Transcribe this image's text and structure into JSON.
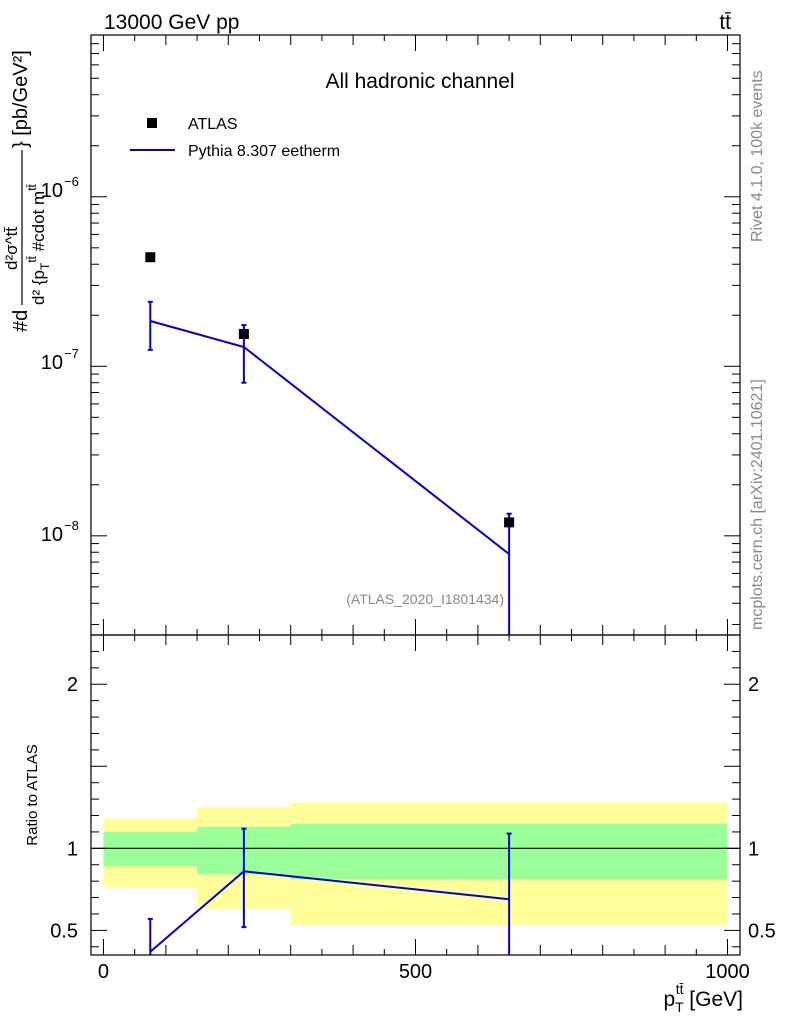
{
  "header": {
    "energy_label": "13000 GeV pp",
    "process_label": "tt̄"
  },
  "side_labels": {
    "rivet": "Rivet 4.1.0,  100k events",
    "source": "mcplots.cern.ch [arXiv:2401.10621]"
  },
  "colors": {
    "data": "#000000",
    "mc": "#0000dd",
    "band_inner": "#99ff99",
    "band_outer": "#ffff99"
  },
  "chart_data": [
    {
      "type": "scatter",
      "panel": "main",
      "title": "All hadronic channel",
      "analysis_label": "(ATLAS_2020_I1801434)",
      "ylabel": "#d d²σ^{tt̄} / d² {p_T^{tt̄} #cdot m^{tt̄}} [pb/GeV²]",
      "ylabel_parts": {
        "prefix": "#d",
        "numerator": "d²σ^tt̄",
        "denominator": "d² {p",
        "denominator_sub": "T",
        "denominator_sup": "tt̄",
        "denominator_rest": " #cdot m",
        "denominator_sup2": "tt̄",
        "unit": "} [pb/GeV²]"
      },
      "yscale": "log",
      "ylim": [
        2.6e-09,
        9e-06
      ],
      "xlim": [
        -20,
        1020
      ],
      "ytick_labels": [
        {
          "value": 1e-06,
          "base": "10",
          "exp": "−6"
        },
        {
          "value": 1e-07,
          "base": "10",
          "exp": "−7"
        },
        {
          "value": 1e-08,
          "base": "10",
          "exp": "−8"
        }
      ],
      "legend": {
        "location": "top-left",
        "entries": [
          {
            "label": "ATLAS",
            "kind": "marker"
          },
          {
            "label": "Pythia 8.307 eetherm",
            "kind": "line"
          }
        ]
      },
      "series": [
        {
          "name": "ATLAS",
          "x": [
            75,
            225,
            650
          ],
          "y": [
            4.4e-07,
            1.55e-07,
            1.2e-08
          ],
          "yerr_low": [
            0,
            0,
            0
          ],
          "yerr_high": [
            0,
            0,
            0
          ]
        },
        {
          "name": "Pythia 8.307 eetherm",
          "x": [
            75,
            225,
            650
          ],
          "y": [
            1.85e-07,
            1.3e-07,
            7.8e-09
          ],
          "yerr_low": [
            1.25e-07,
            8e-08,
            2.5e-09
          ],
          "yerr_high": [
            2.4e-07,
            1.75e-07,
            1.35e-08
          ]
        }
      ]
    },
    {
      "type": "line",
      "panel": "ratio",
      "ylabel": "Ratio to ATLAS",
      "xlabel": "p_T^{tt̄} [GeV]",
      "xlabel_parts": {
        "base": "p",
        "sub": "T",
        "sup": "tt̄",
        "rest": " [GeV]"
      },
      "xlim": [
        -20,
        1020
      ],
      "ylim": [
        0.35,
        2.3
      ],
      "xticks": [
        0,
        500,
        1000
      ],
      "xtick_labels": [
        "0",
        "500",
        "1000"
      ],
      "yticks": [
        0.5,
        1,
        2
      ],
      "ytick_labels": [
        "0.5",
        "1",
        "2"
      ],
      "bands": [
        {
          "xmin": 0,
          "xmax": 150,
          "inner": [
            0.89,
            1.1
          ],
          "outer": [
            0.76,
            1.18
          ]
        },
        {
          "xmin": 150,
          "xmax": 300,
          "inner": [
            0.84,
            1.13
          ],
          "outer": [
            0.63,
            1.25
          ]
        },
        {
          "xmin": 300,
          "xmax": 1000,
          "inner": [
            0.81,
            1.15
          ],
          "outer": [
            0.53,
            1.28
          ]
        }
      ],
      "series": [
        {
          "name": "Pythia 8.307 eetherm",
          "x": [
            75,
            225,
            650
          ],
          "y": [
            0.37,
            0.86,
            0.69
          ],
          "yerr_low": [
            0.3,
            0.52,
            0.3
          ],
          "yerr_high": [
            0.57,
            1.12,
            1.09
          ]
        }
      ]
    }
  ]
}
